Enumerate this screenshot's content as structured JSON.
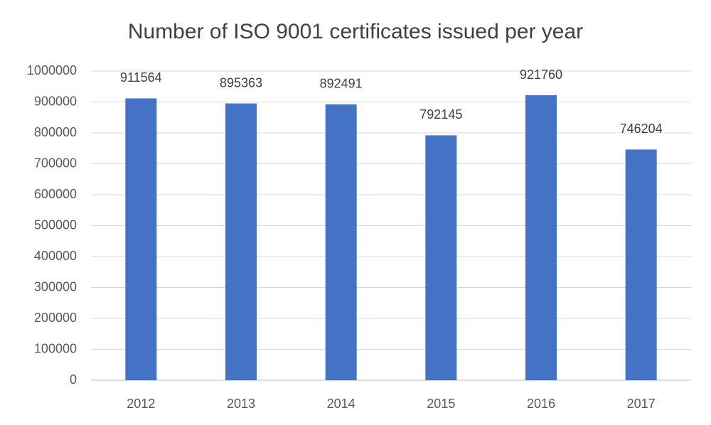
{
  "chart_data": {
    "type": "bar",
    "title": "Number of ISO 9001 certificates issued per year",
    "categories": [
      "2012",
      "2013",
      "2014",
      "2015",
      "2016",
      "2017"
    ],
    "values": [
      911564,
      895363,
      892491,
      792145,
      921760,
      746204
    ],
    "color": "#4472c4",
    "ylim": [
      0,
      1000000
    ],
    "yticks": [
      0,
      100000,
      200000,
      300000,
      400000,
      500000,
      600000,
      700000,
      800000,
      900000,
      1000000
    ],
    "grid": true,
    "data_labels": true
  }
}
